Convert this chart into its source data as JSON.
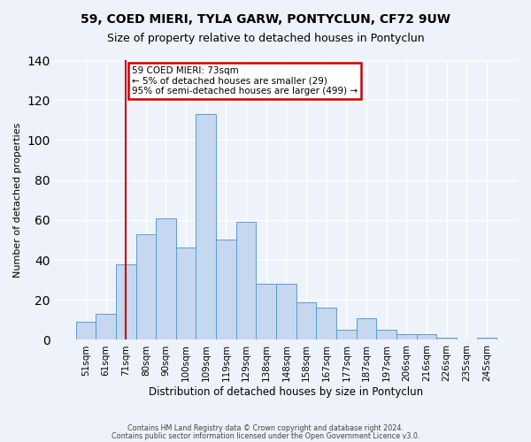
{
  "title": "59, COED MIERI, TYLA GARW, PONTYCLUN, CF72 9UW",
  "subtitle": "Size of property relative to detached houses in Pontyclun",
  "xlabel": "Distribution of detached houses by size in Pontyclun",
  "ylabel": "Number of detached properties",
  "bar_labels": [
    "51sqm",
    "61sqm",
    "71sqm",
    "80sqm",
    "90sqm",
    "100sqm",
    "109sqm",
    "119sqm",
    "129sqm",
    "138sqm",
    "148sqm",
    "158sqm",
    "167sqm",
    "177sqm",
    "187sqm",
    "197sqm",
    "206sqm",
    "216sqm",
    "226sqm",
    "235sqm",
    "245sqm"
  ],
  "bar_heights": [
    9,
    13,
    38,
    53,
    61,
    46,
    113,
    50,
    59,
    28,
    28,
    19,
    16,
    5,
    11,
    5,
    3,
    3,
    1,
    0,
    1
  ],
  "bar_color": "#c5d8f0",
  "bar_edge_color": "#5b9bd5",
  "redline_x": 2,
  "annotation_title": "59 COED MIERI: 73sqm",
  "annotation_line1": "← 5% of detached houses are smaller (29)",
  "annotation_line2": "95% of semi-detached houses are larger (499) →",
  "annotation_box_color": "#ffffff",
  "annotation_border_color": "#cc0000",
  "redline_color": "#cc0000",
  "ylim": [
    0,
    140
  ],
  "yticks": [
    0,
    20,
    40,
    60,
    80,
    100,
    120,
    140
  ],
  "footer1": "Contains HM Land Registry data © Crown copyright and database right 2024.",
  "footer2": "Contains public sector information licensed under the Open Government Licence v3.0.",
  "background_color": "#eef2fa",
  "grid_color": "#ffffff"
}
